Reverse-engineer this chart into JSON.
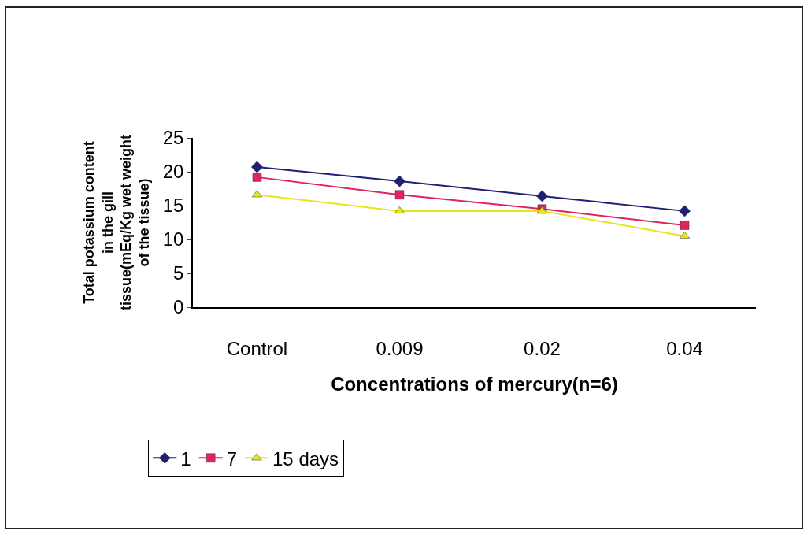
{
  "chart_data": {
    "type": "line",
    "ylabel": "Total potassium content in the gill tissue(mEq/Kg wet weight of the tissue)",
    "xlabel": "Concentrations of mercury(n=6)",
    "categories": [
      "Control",
      "0.009",
      "0.02",
      "0.04"
    ],
    "series": [
      {
        "name": "1",
        "color": "#1f1f78",
        "marker": "diamond",
        "values": [
          20.7,
          18.6,
          16.4,
          14.2
        ]
      },
      {
        "name": "7",
        "color": "#e0245e",
        "marker": "square",
        "values": [
          19.2,
          16.6,
          14.5,
          12.1
        ]
      },
      {
        "name": "15 days",
        "color": "#e6e619",
        "marker": "triangle",
        "values": [
          16.6,
          14.2,
          14.2,
          10.5
        ]
      }
    ],
    "ylim": [
      0,
      25
    ],
    "yticks": [
      0,
      5,
      10,
      15,
      20,
      25
    ],
    "grid": false,
    "legend": "bottom left",
    "line_style": "solid"
  }
}
